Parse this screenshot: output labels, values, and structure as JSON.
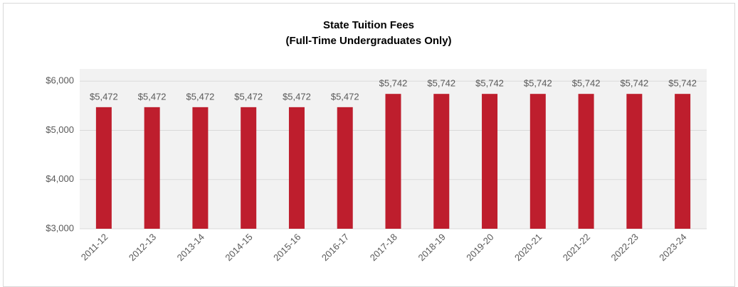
{
  "chart_data": {
    "type": "bar",
    "title": "State Tuition Fees",
    "subtitle": "(Full-Time Undergraduates Only)",
    "categories": [
      "2011-12",
      "2012-13",
      "2013-14",
      "2014-15",
      "2015-16",
      "2016-17",
      "2017-18",
      "2018-19",
      "2019-20",
      "2020-21",
      "2021-22",
      "2022-23",
      "2023-24"
    ],
    "values": [
      5472,
      5472,
      5472,
      5472,
      5472,
      5472,
      5742,
      5742,
      5742,
      5742,
      5742,
      5742,
      5742
    ],
    "value_labels": [
      "$5,472",
      "$5,472",
      "$5,472",
      "$5,472",
      "$5,472",
      "$5,472",
      "$5,742",
      "$5,742",
      "$5,742",
      "$5,742",
      "$5,742",
      "$5,742",
      "$5,742"
    ],
    "color": "#be1e2d",
    "ylim": [
      3000,
      6250
    ],
    "yticks": [
      {
        "value": 3000,
        "label": "$3,000"
      },
      {
        "value": 4000,
        "label": "$4,000"
      },
      {
        "value": 5000,
        "label": "$5,000"
      },
      {
        "value": 6000,
        "label": "$6,000"
      }
    ],
    "grid": true
  }
}
